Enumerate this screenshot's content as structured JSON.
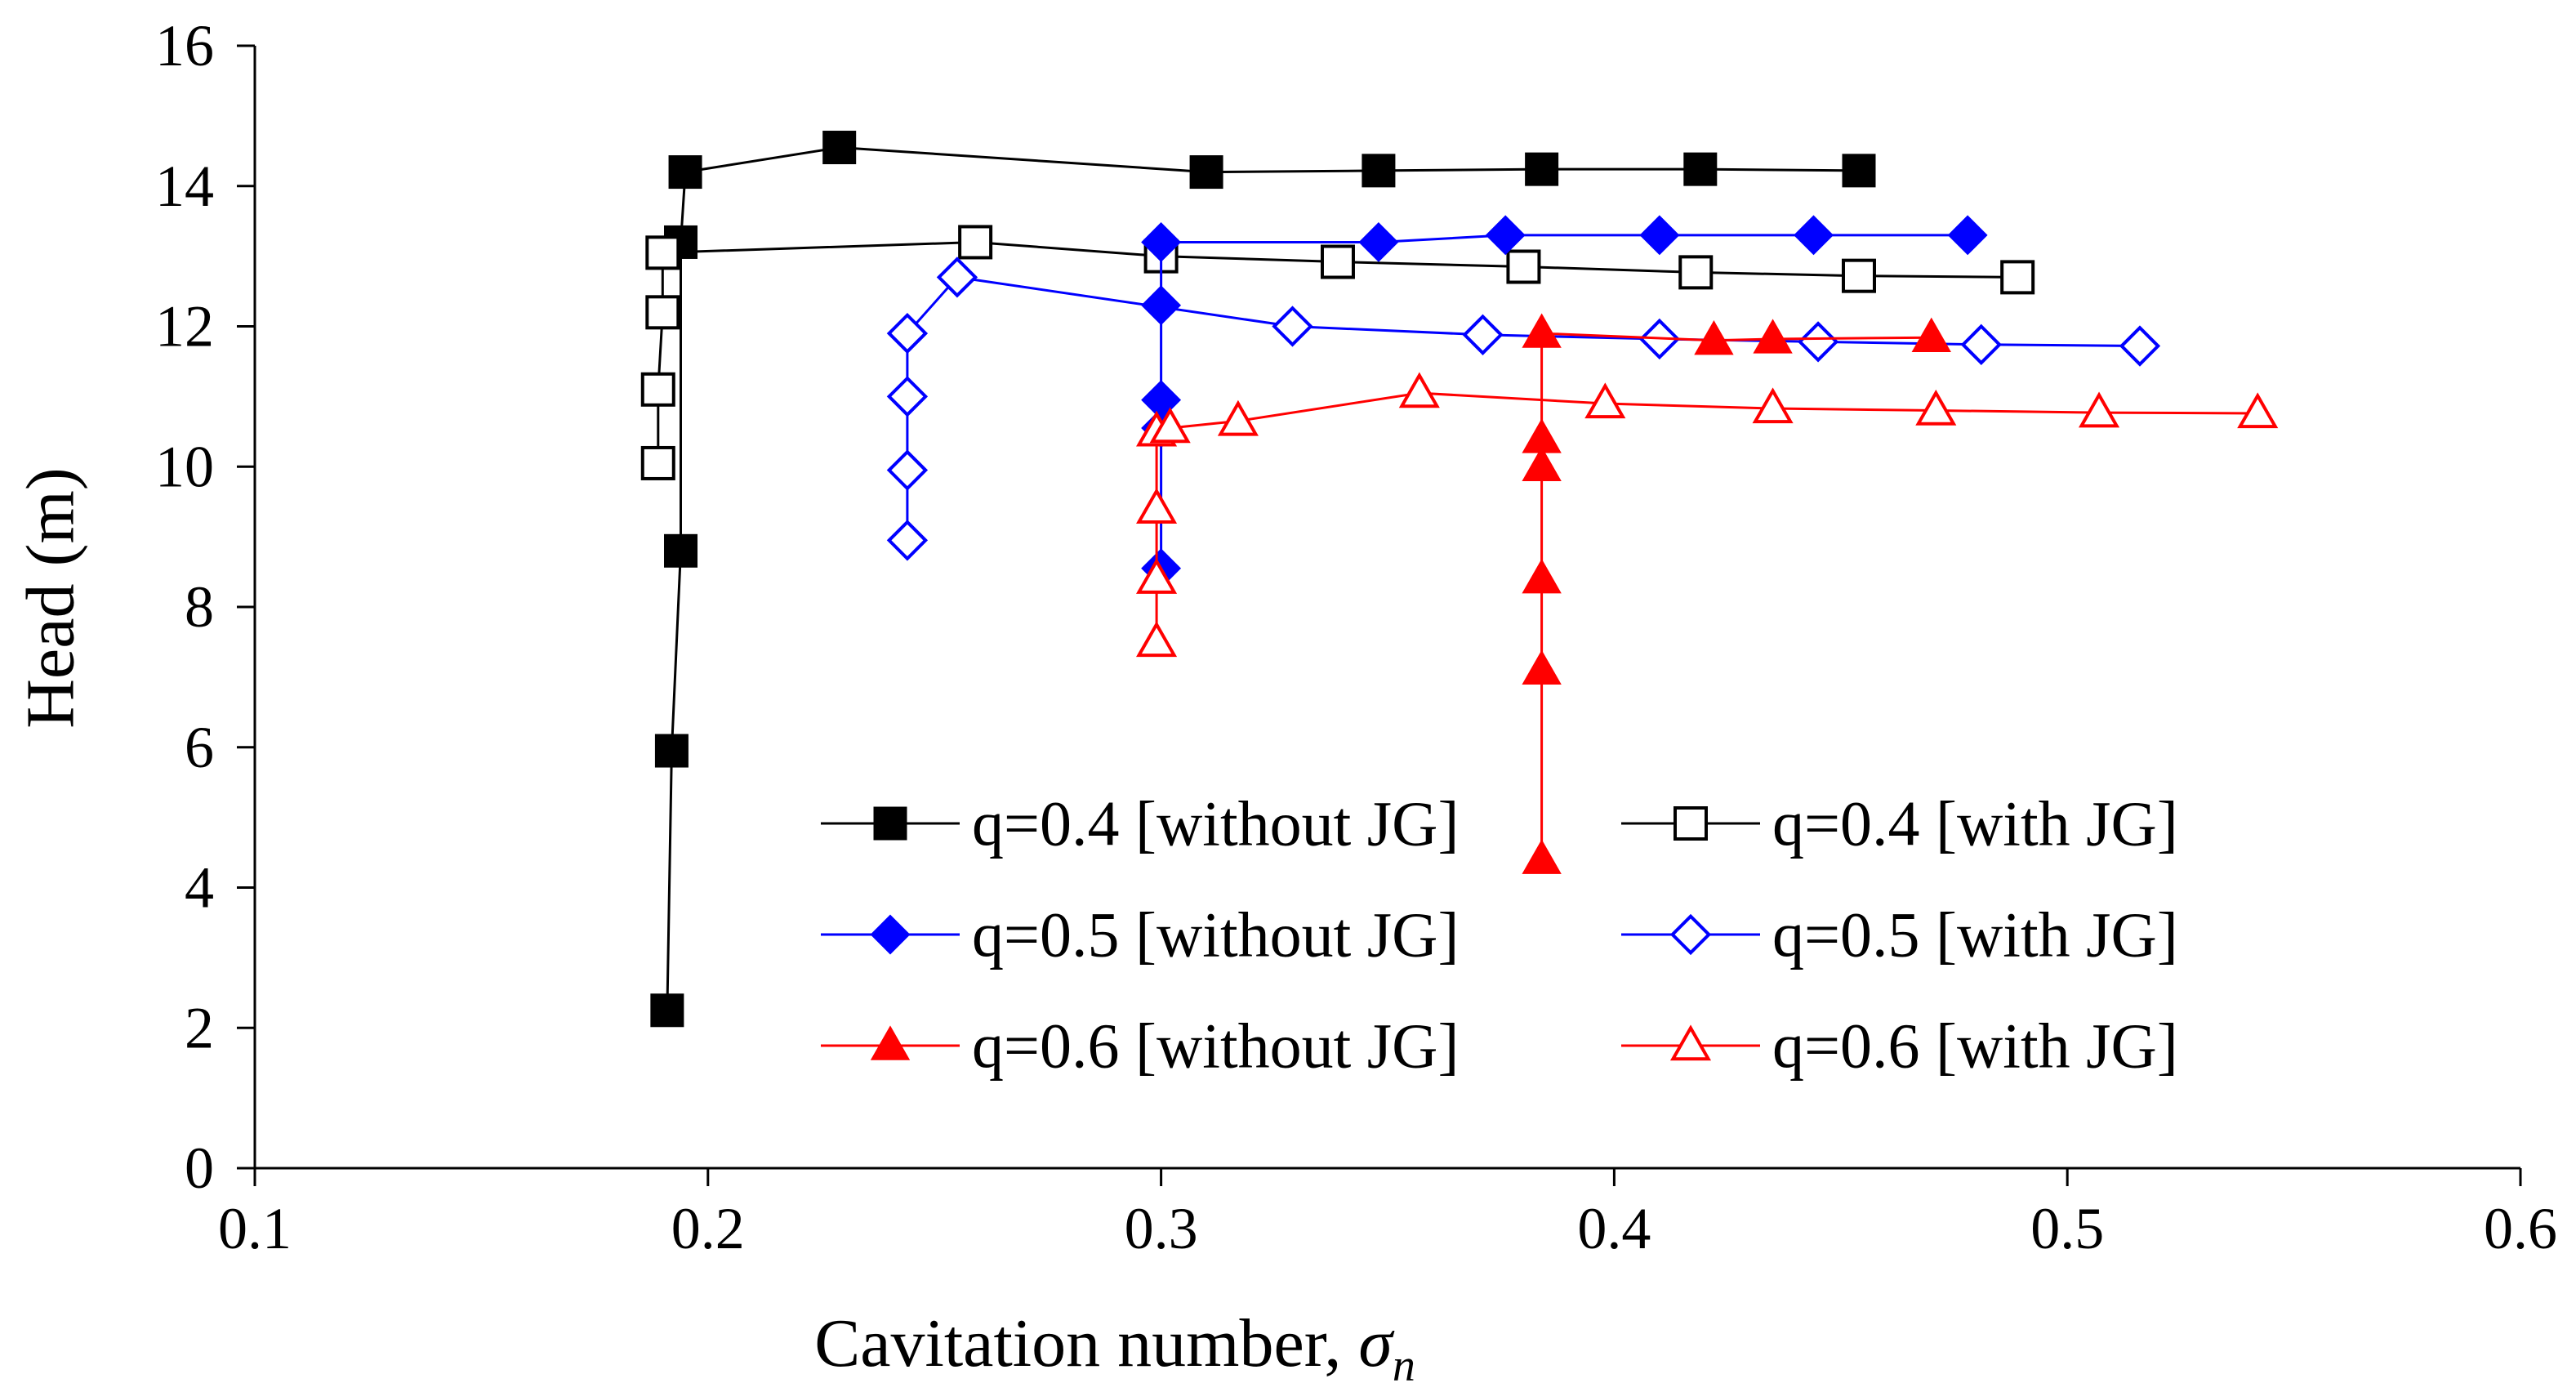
{
  "chart_data": {
    "type": "scatter",
    "title": "",
    "xlabel": "Cavitation number, ",
    "xlabel_symbol": "σ",
    "xlabel_subscript": "n",
    "ylabel": "Head (m)",
    "xlim": [
      0.1,
      0.6
    ],
    "ylim": [
      0,
      16
    ],
    "xticks": [
      0.1,
      0.2,
      0.3,
      0.4,
      0.5,
      0.6
    ],
    "yticks": [
      0,
      2,
      4,
      6,
      8,
      10,
      12,
      14,
      16
    ],
    "xtick_labels": [
      "0.1",
      "0.2",
      "0.3",
      "0.4",
      "0.5",
      "0.6"
    ],
    "ytick_labels": [
      "0",
      "2",
      "4",
      "6",
      "8",
      "10",
      "12",
      "14",
      "16"
    ],
    "grid": false,
    "legend_position": "lower-center",
    "series": [
      {
        "name": "q=0.4 [without JG]",
        "color": "#000000",
        "marker": "square",
        "filled": true,
        "points": [
          [
            0.191,
            2.25
          ],
          [
            0.192,
            5.95
          ],
          [
            0.194,
            8.8
          ],
          [
            0.194,
            13.2
          ],
          [
            0.195,
            14.2
          ],
          [
            0.229,
            14.55
          ],
          [
            0.31,
            14.2
          ],
          [
            0.348,
            14.22
          ],
          [
            0.384,
            14.24
          ],
          [
            0.419,
            14.24
          ],
          [
            0.454,
            14.22
          ]
        ]
      },
      {
        "name": "q=0.4 [with JG]",
        "color": "#000000",
        "marker": "square",
        "filled": false,
        "points": [
          [
            0.189,
            10.05
          ],
          [
            0.189,
            11.1
          ],
          [
            0.19,
            12.2
          ],
          [
            0.19,
            13.05
          ],
          [
            0.259,
            13.2
          ],
          [
            0.3,
            13.0
          ],
          [
            0.339,
            12.92
          ],
          [
            0.38,
            12.85
          ],
          [
            0.418,
            12.77
          ],
          [
            0.454,
            12.72
          ],
          [
            0.489,
            12.7
          ]
        ]
      },
      {
        "name": "q=0.5 [without JG]",
        "color": "#0000FF",
        "marker": "diamond",
        "filled": true,
        "points": [
          [
            0.3,
            8.55
          ],
          [
            0.3,
            10.55
          ],
          [
            0.3,
            10.95
          ],
          [
            0.3,
            12.3
          ],
          [
            0.3,
            13.2
          ],
          [
            0.348,
            13.2
          ],
          [
            0.376,
            13.3
          ],
          [
            0.41,
            13.3
          ],
          [
            0.444,
            13.3
          ],
          [
            0.478,
            13.3
          ]
        ]
      },
      {
        "name": "q=0.5 [with JG]",
        "color": "#0000FF",
        "marker": "diamond",
        "filled": false,
        "points": [
          [
            0.244,
            8.95
          ],
          [
            0.244,
            9.95
          ],
          [
            0.244,
            11.0
          ],
          [
            0.244,
            11.9
          ],
          [
            0.255,
            12.7
          ],
          [
            0.329,
            12.0
          ],
          [
            0.371,
            11.88
          ],
          [
            0.41,
            11.82
          ],
          [
            0.445,
            11.78
          ],
          [
            0.481,
            11.74
          ],
          [
            0.516,
            11.72
          ]
        ]
      },
      {
        "name": "q=0.6 [without JG]",
        "color": "#FF0000",
        "marker": "triangle",
        "filled": true,
        "points": [
          [
            0.384,
            4.4
          ],
          [
            0.384,
            7.1
          ],
          [
            0.384,
            8.4
          ],
          [
            0.384,
            10.0
          ],
          [
            0.384,
            10.4
          ],
          [
            0.384,
            11.9
          ],
          [
            0.422,
            11.8
          ],
          [
            0.435,
            11.82
          ],
          [
            0.47,
            11.84
          ]
        ]
      },
      {
        "name": "q=0.6 [with JG]",
        "color": "#FF0000",
        "marker": "triangle",
        "filled": false,
        "points": [
          [
            0.299,
            7.5
          ],
          [
            0.299,
            8.4
          ],
          [
            0.299,
            9.4
          ],
          [
            0.299,
            10.5
          ],
          [
            0.302,
            10.55
          ],
          [
            0.317,
            10.65
          ],
          [
            0.357,
            11.05
          ],
          [
            0.398,
            10.9
          ],
          [
            0.435,
            10.83
          ],
          [
            0.471,
            10.8
          ],
          [
            0.507,
            10.77
          ],
          [
            0.542,
            10.76
          ]
        ]
      }
    ]
  }
}
